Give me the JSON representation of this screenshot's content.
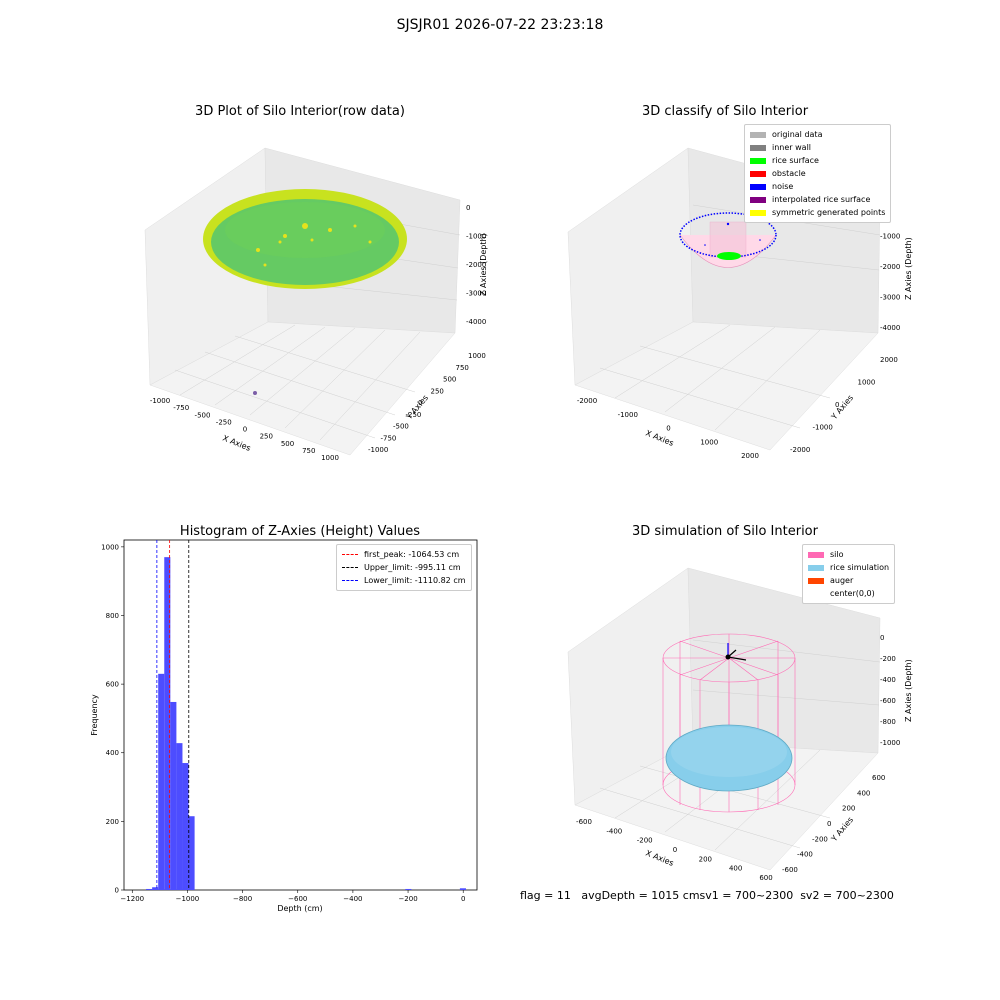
{
  "suptitle": "SJSJR01 2026-07-22 23:23:18",
  "panels": {
    "raw": {
      "title": "3D Plot of Silo Interior(row data)",
      "xlabel": "X Axies",
      "ylabel": "Y Axies",
      "zlabel": "Z Axies (Depth)",
      "xticks": [
        "-1000",
        "-750",
        "-500",
        "-250",
        "0",
        "250",
        "500",
        "750",
        "1000"
      ],
      "yticks": [
        "-1000",
        "-750",
        "-500",
        "-250",
        "0",
        "250",
        "500",
        "750",
        "1000"
      ],
      "zticks": [
        "0",
        "-1000",
        "-2000",
        "-3000",
        "-4000"
      ],
      "colors": {
        "surface": "#5ac86a",
        "edge": "#c8e21f",
        "points": "#e6e21c",
        "outlier": "#7b5ea7"
      }
    },
    "classify": {
      "title": "3D classify of Silo Interior",
      "xlabel": "X Axies",
      "ylabel": "Y Axies",
      "zlabel": "Z Axies (Depth)",
      "xticks": [
        "-2000",
        "-1000",
        "0",
        "1000",
        "2000"
      ],
      "yticks": [
        "-2000",
        "-1000",
        "0",
        "1000",
        "2000"
      ],
      "zticks": [
        "0",
        "-1000",
        "-2000",
        "-3000",
        "-4000"
      ],
      "legend": [
        {
          "label": "original data",
          "color": "#b3b3b3"
        },
        {
          "label": "inner wall",
          "color": "#808080"
        },
        {
          "label": "rice surface",
          "color": "#00ff00"
        },
        {
          "label": "obstacle",
          "color": "#ff0000"
        },
        {
          "label": "noise",
          "color": "#0000ff"
        },
        {
          "label": "interpolated rice surface",
          "color": "#800080"
        },
        {
          "label": "symmetric generated points",
          "color": "#ffff00"
        }
      ]
    },
    "simulation": {
      "title": "3D simulation of Silo Interior",
      "xlabel": "X Axies",
      "ylabel": "Y Axies",
      "zlabel": "Z Axies (Depth)",
      "xticks": [
        "-600",
        "-400",
        "-200",
        "0",
        "200",
        "400",
        "600"
      ],
      "yticks": [
        "-600",
        "-400",
        "-200",
        "0",
        "200",
        "400",
        "600"
      ],
      "zticks": [
        "0",
        "-200",
        "-400",
        "-600",
        "-800",
        "-1000"
      ],
      "legend": [
        {
          "label": "silo",
          "color": "#ff69b4"
        },
        {
          "label": "rice simulation",
          "color": "#87ceeb"
        },
        {
          "label": "auger",
          "color": "#ff4500"
        },
        {
          "label": "center(0,0)",
          "color": "#ffffff"
        }
      ]
    }
  },
  "chart_data": {
    "type": "bar",
    "title": "Histogram of Z-Axies (Height) Values",
    "xlabel": "Depth (cm)",
    "ylabel": "Frequency",
    "xlim": [
      -1230,
      50
    ],
    "ylim": [
      0,
      1020
    ],
    "xticks": [
      -1200,
      -1000,
      -800,
      -600,
      -400,
      -200,
      0
    ],
    "yticks": [
      0,
      200,
      400,
      600,
      800,
      1000
    ],
    "bin_width": 22,
    "bar_color": "#4d4dff",
    "bins": [
      {
        "x": -1150,
        "value": 3
      },
      {
        "x": -1128,
        "value": 8
      },
      {
        "x": -1106,
        "value": 630
      },
      {
        "x": -1084,
        "value": 970
      },
      {
        "x": -1062,
        "value": 548
      },
      {
        "x": -1040,
        "value": 428
      },
      {
        "x": -1018,
        "value": 370
      },
      {
        "x": -996,
        "value": 215
      },
      {
        "x": -210,
        "value": 3
      },
      {
        "x": -12,
        "value": 5
      }
    ],
    "vlines": [
      {
        "label": "first_peak: -1064.53 cm",
        "x": -1064.53,
        "color": "#ff0000"
      },
      {
        "label": "Upper_limit: -995.11 cm",
        "x": -995.11,
        "color": "#000000"
      },
      {
        "label": "Lower_limit: -1110.82 cm",
        "x": -1110.82,
        "color": "#0000ff"
      }
    ],
    "legend_position": "top-right"
  },
  "footer": "flag = 11   avgDepth = 1015 cmsv1 = 700~2300  sv2 = 700~2300"
}
